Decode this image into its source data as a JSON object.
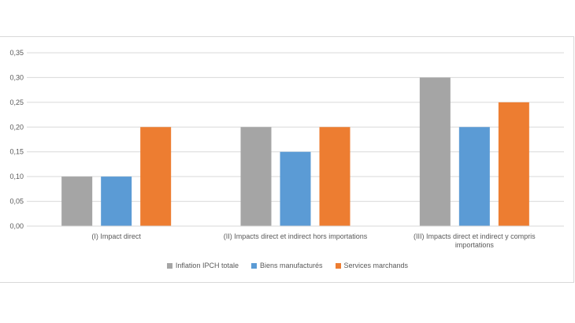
{
  "chart_data": {
    "type": "bar",
    "categories": [
      "(I) Impact direct",
      "(II) Impacts direct et indirect hors importations",
      "(III) Impacts direct et indirect y compris importations"
    ],
    "category_label_lines": [
      [
        "(I) Impact direct"
      ],
      [
        "(II) Impacts direct et indirect hors importations"
      ],
      [
        "(III) Impacts direct et indirect y compris",
        "importations"
      ]
    ],
    "series": [
      {
        "name": "Inflation IPCH totale",
        "values": [
          0.1,
          0.2,
          0.3
        ],
        "color": "#a5a5a5"
      },
      {
        "name": "Biens manufacturés",
        "values": [
          0.1,
          0.15,
          0.2
        ],
        "color": "#5b9bd5"
      },
      {
        "name": "Services marchands",
        "values": [
          0.2,
          0.2,
          0.25
        ],
        "color": "#ed7d31"
      }
    ],
    "ylim": [
      0,
      0.35
    ],
    "yticks": [
      "0,00",
      "0,05",
      "0,10",
      "0,15",
      "0,20",
      "0,25",
      "0,30",
      "0,35"
    ],
    "grid": true,
    "legend_position": "bottom",
    "title": "",
    "xlabel": "",
    "ylabel": ""
  }
}
